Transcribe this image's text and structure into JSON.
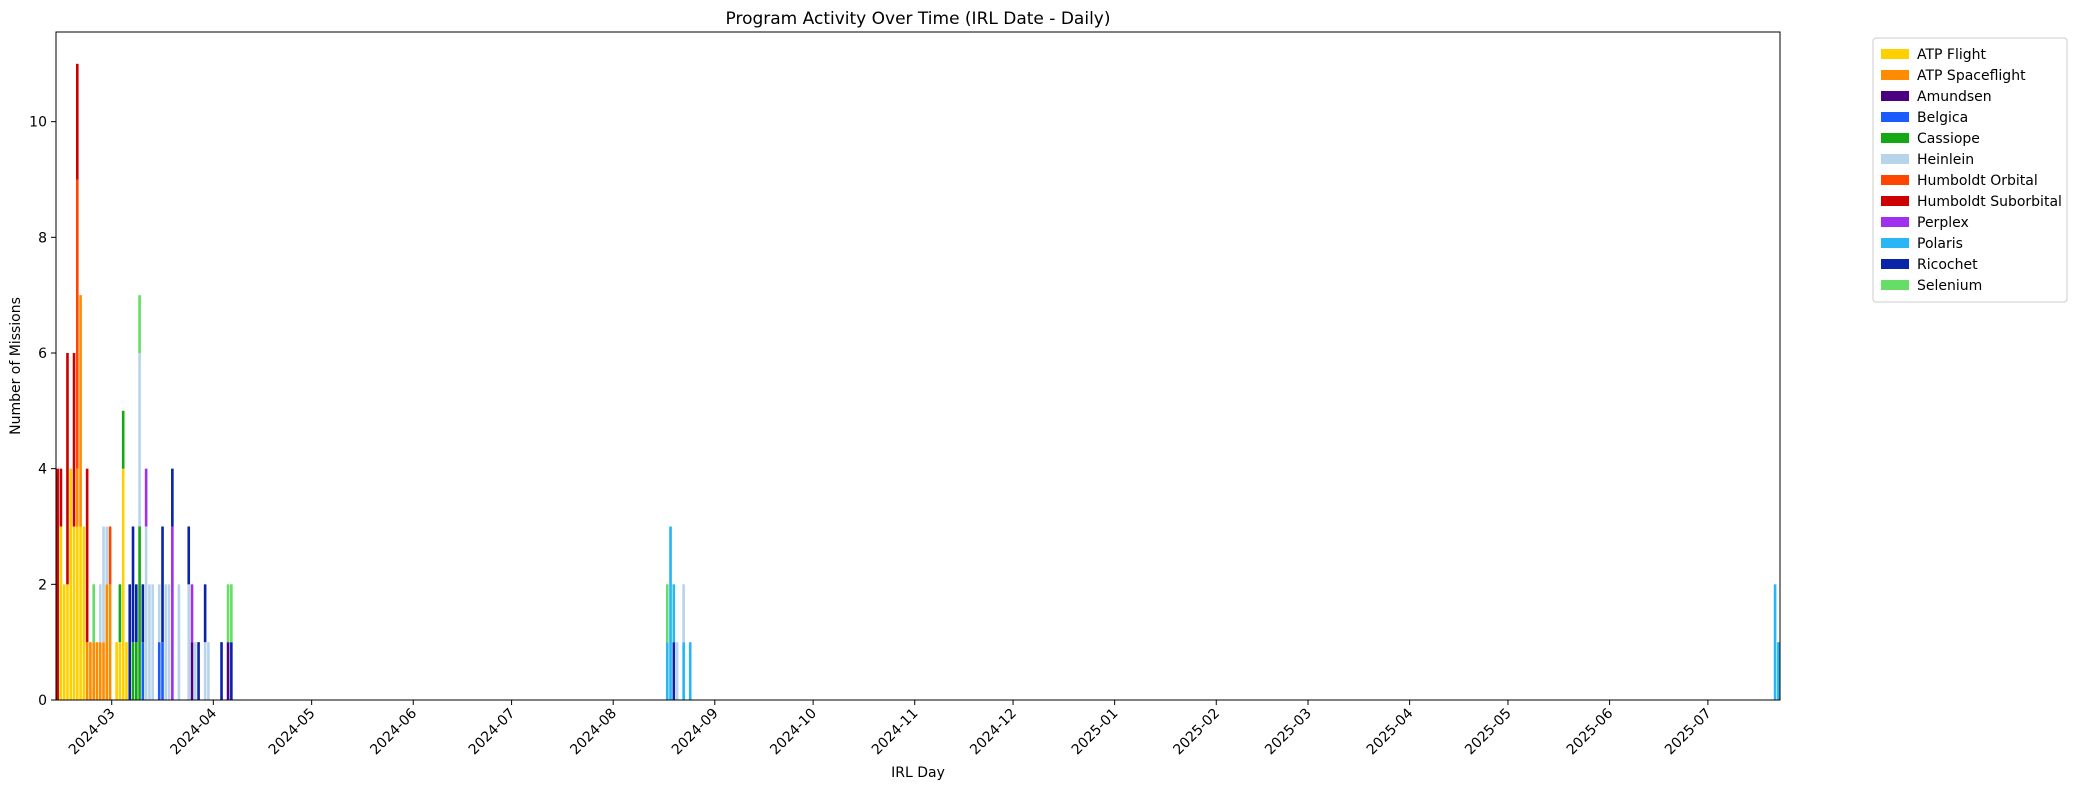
{
  "chart_data": {
    "type": "bar",
    "stacked": true,
    "title": "Program Activity Over Time (IRL Date - Daily)",
    "xlabel": "IRL Day",
    "ylabel": "Number of Missions",
    "xlim": [
      "2024-02-13",
      "2025-07-22"
    ],
    "ylim": [
      0,
      11.55
    ],
    "yticks": [
      0,
      2,
      4,
      6,
      8,
      10
    ],
    "xticks": [
      "2024-03",
      "2024-04",
      "2024-05",
      "2024-06",
      "2024-07",
      "2024-08",
      "2024-09",
      "2024-10",
      "2024-11",
      "2024-12",
      "2025-01",
      "2025-02",
      "2025-03",
      "2025-04",
      "2025-05",
      "2025-06",
      "2025-07"
    ],
    "legend_position": "outside-right",
    "series": [
      {
        "name": "ATP Flight",
        "color": "#FFD000"
      },
      {
        "name": "ATP Spaceflight",
        "color": "#FF8C00"
      },
      {
        "name": "Amundsen",
        "color": "#4B0082"
      },
      {
        "name": "Belgica",
        "color": "#1A5CFF"
      },
      {
        "name": "Cassiope",
        "color": "#14A814"
      },
      {
        "name": "Heinlein",
        "color": "#B8D4EA"
      },
      {
        "name": "Humboldt Orbital",
        "color": "#FF4500"
      },
      {
        "name": "Humboldt Suborbital",
        "color": "#CC0000"
      },
      {
        "name": "Perplex",
        "color": "#A030F0"
      },
      {
        "name": "Polaris",
        "color": "#29B6F6"
      },
      {
        "name": "Ricochet",
        "color": "#0A24A8"
      },
      {
        "name": "Selenium",
        "color": "#66DD66"
      }
    ],
    "bars": [
      {
        "date": "2024-02-13",
        "segments": [
          [
            "Humboldt Suborbital",
            4
          ]
        ]
      },
      {
        "date": "2024-02-14",
        "segments": [
          [
            "ATP Flight",
            3
          ],
          [
            "Humboldt Suborbital",
            1
          ]
        ]
      },
      {
        "date": "2024-02-15",
        "segments": [
          [
            "ATP Flight",
            2
          ]
        ]
      },
      {
        "date": "2024-02-16",
        "segments": [
          [
            "ATP Flight",
            2
          ],
          [
            "Humboldt Suborbital",
            4
          ]
        ]
      },
      {
        "date": "2024-02-17",
        "segments": [
          [
            "ATP Flight",
            4
          ]
        ]
      },
      {
        "date": "2024-02-18",
        "segments": [
          [
            "ATP Flight",
            3
          ],
          [
            "Humboldt Suborbital",
            3
          ]
        ]
      },
      {
        "date": "2024-02-19",
        "segments": [
          [
            "ATP Flight",
            3
          ],
          [
            "ATP Spaceflight",
            1
          ],
          [
            "Humboldt Orbital",
            5
          ],
          [
            "Humboldt Suborbital",
            2
          ]
        ]
      },
      {
        "date": "2024-02-20",
        "segments": [
          [
            "ATP Flight",
            3
          ],
          [
            "ATP Spaceflight",
            4
          ]
        ]
      },
      {
        "date": "2024-02-21",
        "segments": [
          [
            "ATP Flight",
            3
          ]
        ]
      },
      {
        "date": "2024-02-22",
        "segments": [
          [
            "ATP Spaceflight",
            1
          ],
          [
            "Humboldt Suborbital",
            3
          ]
        ]
      },
      {
        "date": "2024-02-23",
        "segments": [
          [
            "ATP Spaceflight",
            1
          ]
        ]
      },
      {
        "date": "2024-02-24",
        "segments": [
          [
            "ATP Spaceflight",
            1
          ],
          [
            "Selenium",
            1
          ]
        ]
      },
      {
        "date": "2024-02-25",
        "segments": [
          [
            "ATP Spaceflight",
            1
          ]
        ]
      },
      {
        "date": "2024-02-26",
        "segments": [
          [
            "ATP Spaceflight",
            1
          ],
          [
            "Heinlein",
            1
          ]
        ]
      },
      {
        "date": "2024-02-27",
        "segments": [
          [
            "ATP Spaceflight",
            1
          ],
          [
            "Heinlein",
            2
          ]
        ]
      },
      {
        "date": "2024-02-28",
        "segments": [
          [
            "ATP Spaceflight",
            2
          ],
          [
            "Heinlein",
            1
          ]
        ]
      },
      {
        "date": "2024-02-29",
        "segments": [
          [
            "ATP Spaceflight",
            2
          ],
          [
            "Humboldt Orbital",
            1
          ]
        ]
      },
      {
        "date": "2024-03-02",
        "segments": [
          [
            "ATP Flight",
            1
          ]
        ]
      },
      {
        "date": "2024-03-03",
        "segments": [
          [
            "ATP Flight",
            1
          ],
          [
            "Cassiope",
            1
          ]
        ]
      },
      {
        "date": "2024-03-04",
        "segments": [
          [
            "ATP Flight",
            4
          ],
          [
            "Cassiope",
            1
          ]
        ]
      },
      {
        "date": "2024-03-05",
        "segments": [
          [
            "ATP Flight",
            1
          ]
        ]
      },
      {
        "date": "2024-03-06",
        "segments": [
          [
            "Ricochet",
            2
          ]
        ]
      },
      {
        "date": "2024-03-07",
        "segments": [
          [
            "Cassiope",
            1
          ],
          [
            "Ricochet",
            2
          ]
        ]
      },
      {
        "date": "2024-03-08",
        "segments": [
          [
            "Cassiope",
            1
          ],
          [
            "Ricochet",
            1
          ]
        ]
      },
      {
        "date": "2024-03-09",
        "segments": [
          [
            "Cassiope",
            3
          ],
          [
            "Heinlein",
            3
          ],
          [
            "Selenium",
            1
          ]
        ]
      },
      {
        "date": "2024-03-10",
        "segments": [
          [
            "Belgica",
            1
          ],
          [
            "Ricochet",
            1
          ]
        ]
      },
      {
        "date": "2024-03-11",
        "segments": [
          [
            "Heinlein",
            3
          ],
          [
            "Perplex",
            1
          ]
        ]
      },
      {
        "date": "2024-03-12",
        "segments": [
          [
            "Heinlein",
            2
          ]
        ]
      },
      {
        "date": "2024-03-13",
        "segments": [
          [
            "Heinlein",
            2
          ]
        ]
      },
      {
        "date": "2024-03-15",
        "segments": [
          [
            "Belgica",
            1
          ],
          [
            "Heinlein",
            1
          ]
        ]
      },
      {
        "date": "2024-03-16",
        "segments": [
          [
            "Belgica",
            1
          ],
          [
            "Ricochet",
            2
          ]
        ]
      },
      {
        "date": "2024-03-17",
        "segments": [
          [
            "Heinlein",
            2
          ]
        ]
      },
      {
        "date": "2024-03-18",
        "segments": [
          [
            "Heinlein",
            2
          ]
        ]
      },
      {
        "date": "2024-03-19",
        "segments": [
          [
            "Perplex",
            3
          ],
          [
            "Ricochet",
            1
          ]
        ]
      },
      {
        "date": "2024-03-21",
        "segments": [
          [
            "Heinlein",
            2
          ]
        ]
      },
      {
        "date": "2024-03-24",
        "segments": [
          [
            "Heinlein",
            2
          ],
          [
            "Ricochet",
            1
          ]
        ]
      },
      {
        "date": "2024-03-25",
        "segments": [
          [
            "Amundsen",
            1
          ],
          [
            "Perplex",
            1
          ]
        ]
      },
      {
        "date": "2024-03-26",
        "segments": [
          [
            "Heinlein",
            1
          ]
        ]
      },
      {
        "date": "2024-03-27",
        "segments": [
          [
            "Ricochet",
            1
          ]
        ]
      },
      {
        "date": "2024-03-29",
        "segments": [
          [
            "Heinlein",
            1
          ],
          [
            "Ricochet",
            1
          ]
        ]
      },
      {
        "date": "2024-03-30",
        "segments": [
          [
            "Heinlein",
            1
          ]
        ]
      },
      {
        "date": "2024-04-03",
        "segments": [
          [
            "Ricochet",
            1
          ]
        ]
      },
      {
        "date": "2024-04-05",
        "segments": [
          [
            "Amundsen",
            1
          ],
          [
            "Selenium",
            1
          ]
        ]
      },
      {
        "date": "2024-04-06",
        "segments": [
          [
            "Ricochet",
            1
          ],
          [
            "Selenium",
            1
          ]
        ]
      },
      {
        "date": "2024-08-17",
        "segments": [
          [
            "Polaris",
            1
          ],
          [
            "Selenium",
            1
          ]
        ]
      },
      {
        "date": "2024-08-18",
        "segments": [
          [
            "Polaris",
            3
          ]
        ]
      },
      {
        "date": "2024-08-19",
        "segments": [
          [
            "Ricochet",
            1
          ],
          [
            "Polaris",
            1
          ]
        ]
      },
      {
        "date": "2024-08-20",
        "segments": [
          [
            "Heinlein",
            1
          ]
        ]
      },
      {
        "date": "2024-08-22",
        "segments": [
          [
            "Polaris",
            1
          ],
          [
            "Heinlein",
            1
          ]
        ]
      },
      {
        "date": "2024-08-24",
        "segments": [
          [
            "Polaris",
            1
          ]
        ]
      },
      {
        "date": "2025-07-21",
        "segments": [
          [
            "Polaris",
            2
          ]
        ]
      },
      {
        "date": "2025-07-22",
        "segments": [
          [
            "Polaris",
            1
          ]
        ]
      }
    ]
  }
}
